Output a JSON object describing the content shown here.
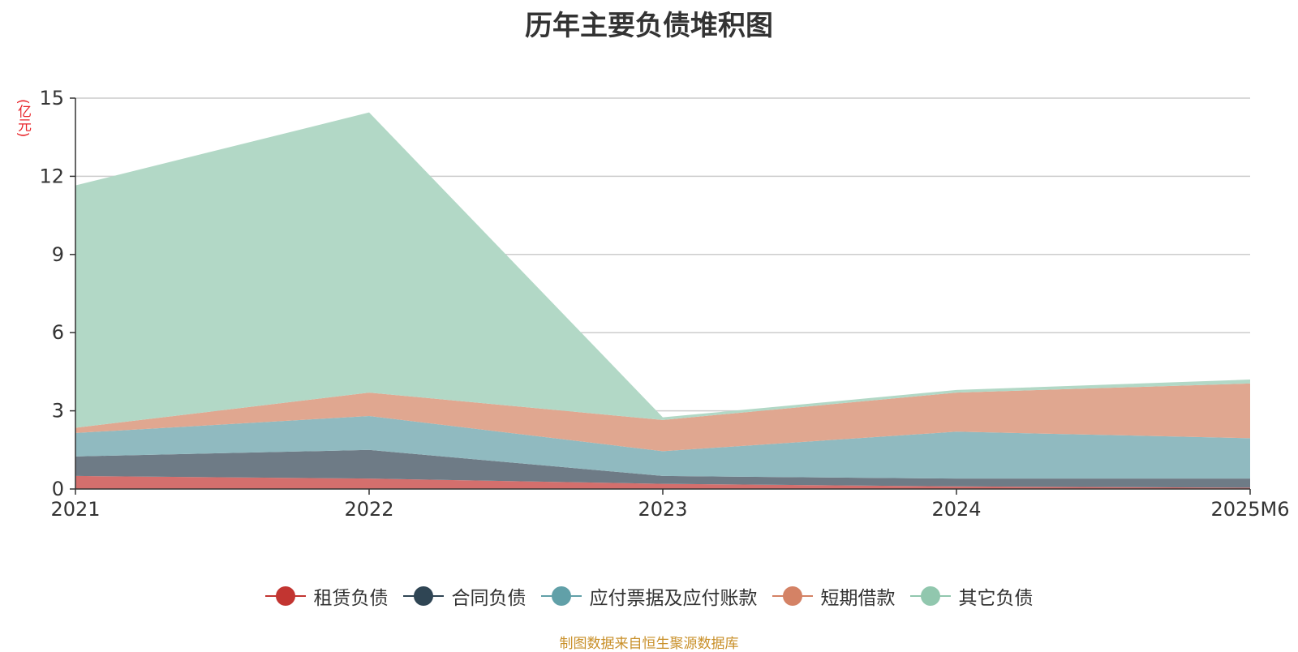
{
  "chart_data": {
    "type": "area",
    "stacked": true,
    "title": "历年主要负债堆积图",
    "unit": "(亿元)",
    "categories": [
      "2021",
      "2022",
      "2023",
      "2024",
      "2025M6"
    ],
    "y_ticks": [
      "0",
      "3",
      "6",
      "9",
      "12",
      "15"
    ],
    "ylim": [
      0,
      15
    ],
    "grid": true,
    "legend_position": "bottom",
    "series": [
      {
        "name": "租赁负债",
        "color": "#c23531",
        "fill": "#d46f6d",
        "values": [
          0.5,
          0.4,
          0.2,
          0.1,
          0.05
        ]
      },
      {
        "name": "合同负债",
        "color": "#2f4554",
        "fill": "#6e7b86",
        "values": [
          0.75,
          1.1,
          0.3,
          0.3,
          0.35
        ]
      },
      {
        "name": "应付票据及应付账款",
        "color": "#61a0a8",
        "fill": "#90bac0",
        "values": [
          0.9,
          1.3,
          0.95,
          1.8,
          1.55
        ]
      },
      {
        "name": "短期借款",
        "color": "#d48265",
        "fill": "#e0a790",
        "values": [
          0.2,
          0.9,
          1.2,
          1.5,
          2.1
        ]
      },
      {
        "name": "其它负债",
        "color": "#91c7ae",
        "fill": "#b2d8c6",
        "values": [
          9.3,
          10.75,
          0.1,
          0.1,
          0.15
        ]
      }
    ]
  },
  "source_text": "制图数据来自恒生聚源数据库"
}
